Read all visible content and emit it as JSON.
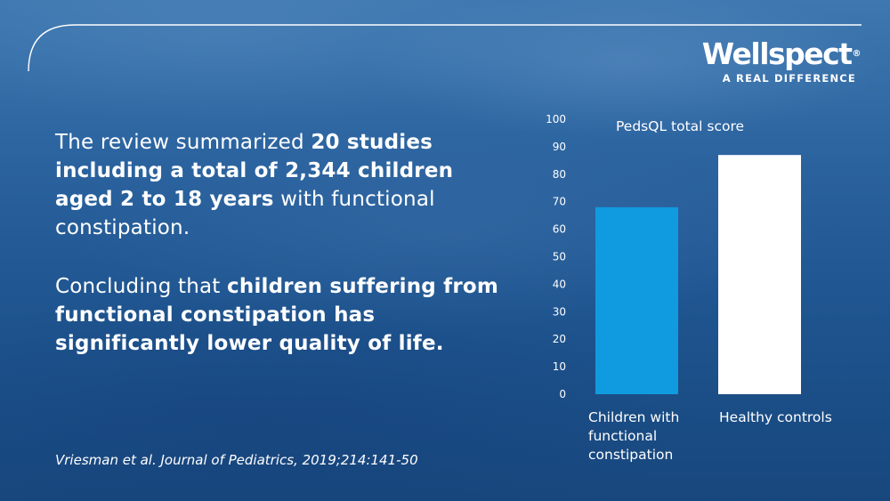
{
  "logo": {
    "name": "Wellspect",
    "registered": "®",
    "tagline": "A REAL DIFFERENCE"
  },
  "text": {
    "p1": [
      "The review summarized ",
      "20 studies including a total of 2,344 children aged 2 to 18 years",
      " with functional constipation."
    ],
    "p2": [
      "Concluding that ",
      "children suffering from functional constipation has significantly lower quality of life."
    ],
    "citation": "Vriesman et al. Journal of Pediatrics, 2019;214:141-50"
  },
  "colors": {
    "bar_children": "#109be0",
    "bar_controls": "#ffffff",
    "text": "#ffffff"
  },
  "chart_data": {
    "type": "bar",
    "title": "PedsQL total score",
    "categories": [
      "Children with functional constipation",
      "Healthy controls"
    ],
    "category_lines": [
      [
        "Children with",
        "functional",
        "constipation"
      ],
      [
        "Healthy controls"
      ]
    ],
    "values": [
      68,
      87
    ],
    "ylim": [
      0,
      100
    ],
    "yticks": [
      0,
      10,
      20,
      30,
      40,
      50,
      60,
      70,
      80,
      90,
      100
    ],
    "xlabel": "",
    "ylabel": "",
    "grid": false,
    "legend": "none"
  }
}
